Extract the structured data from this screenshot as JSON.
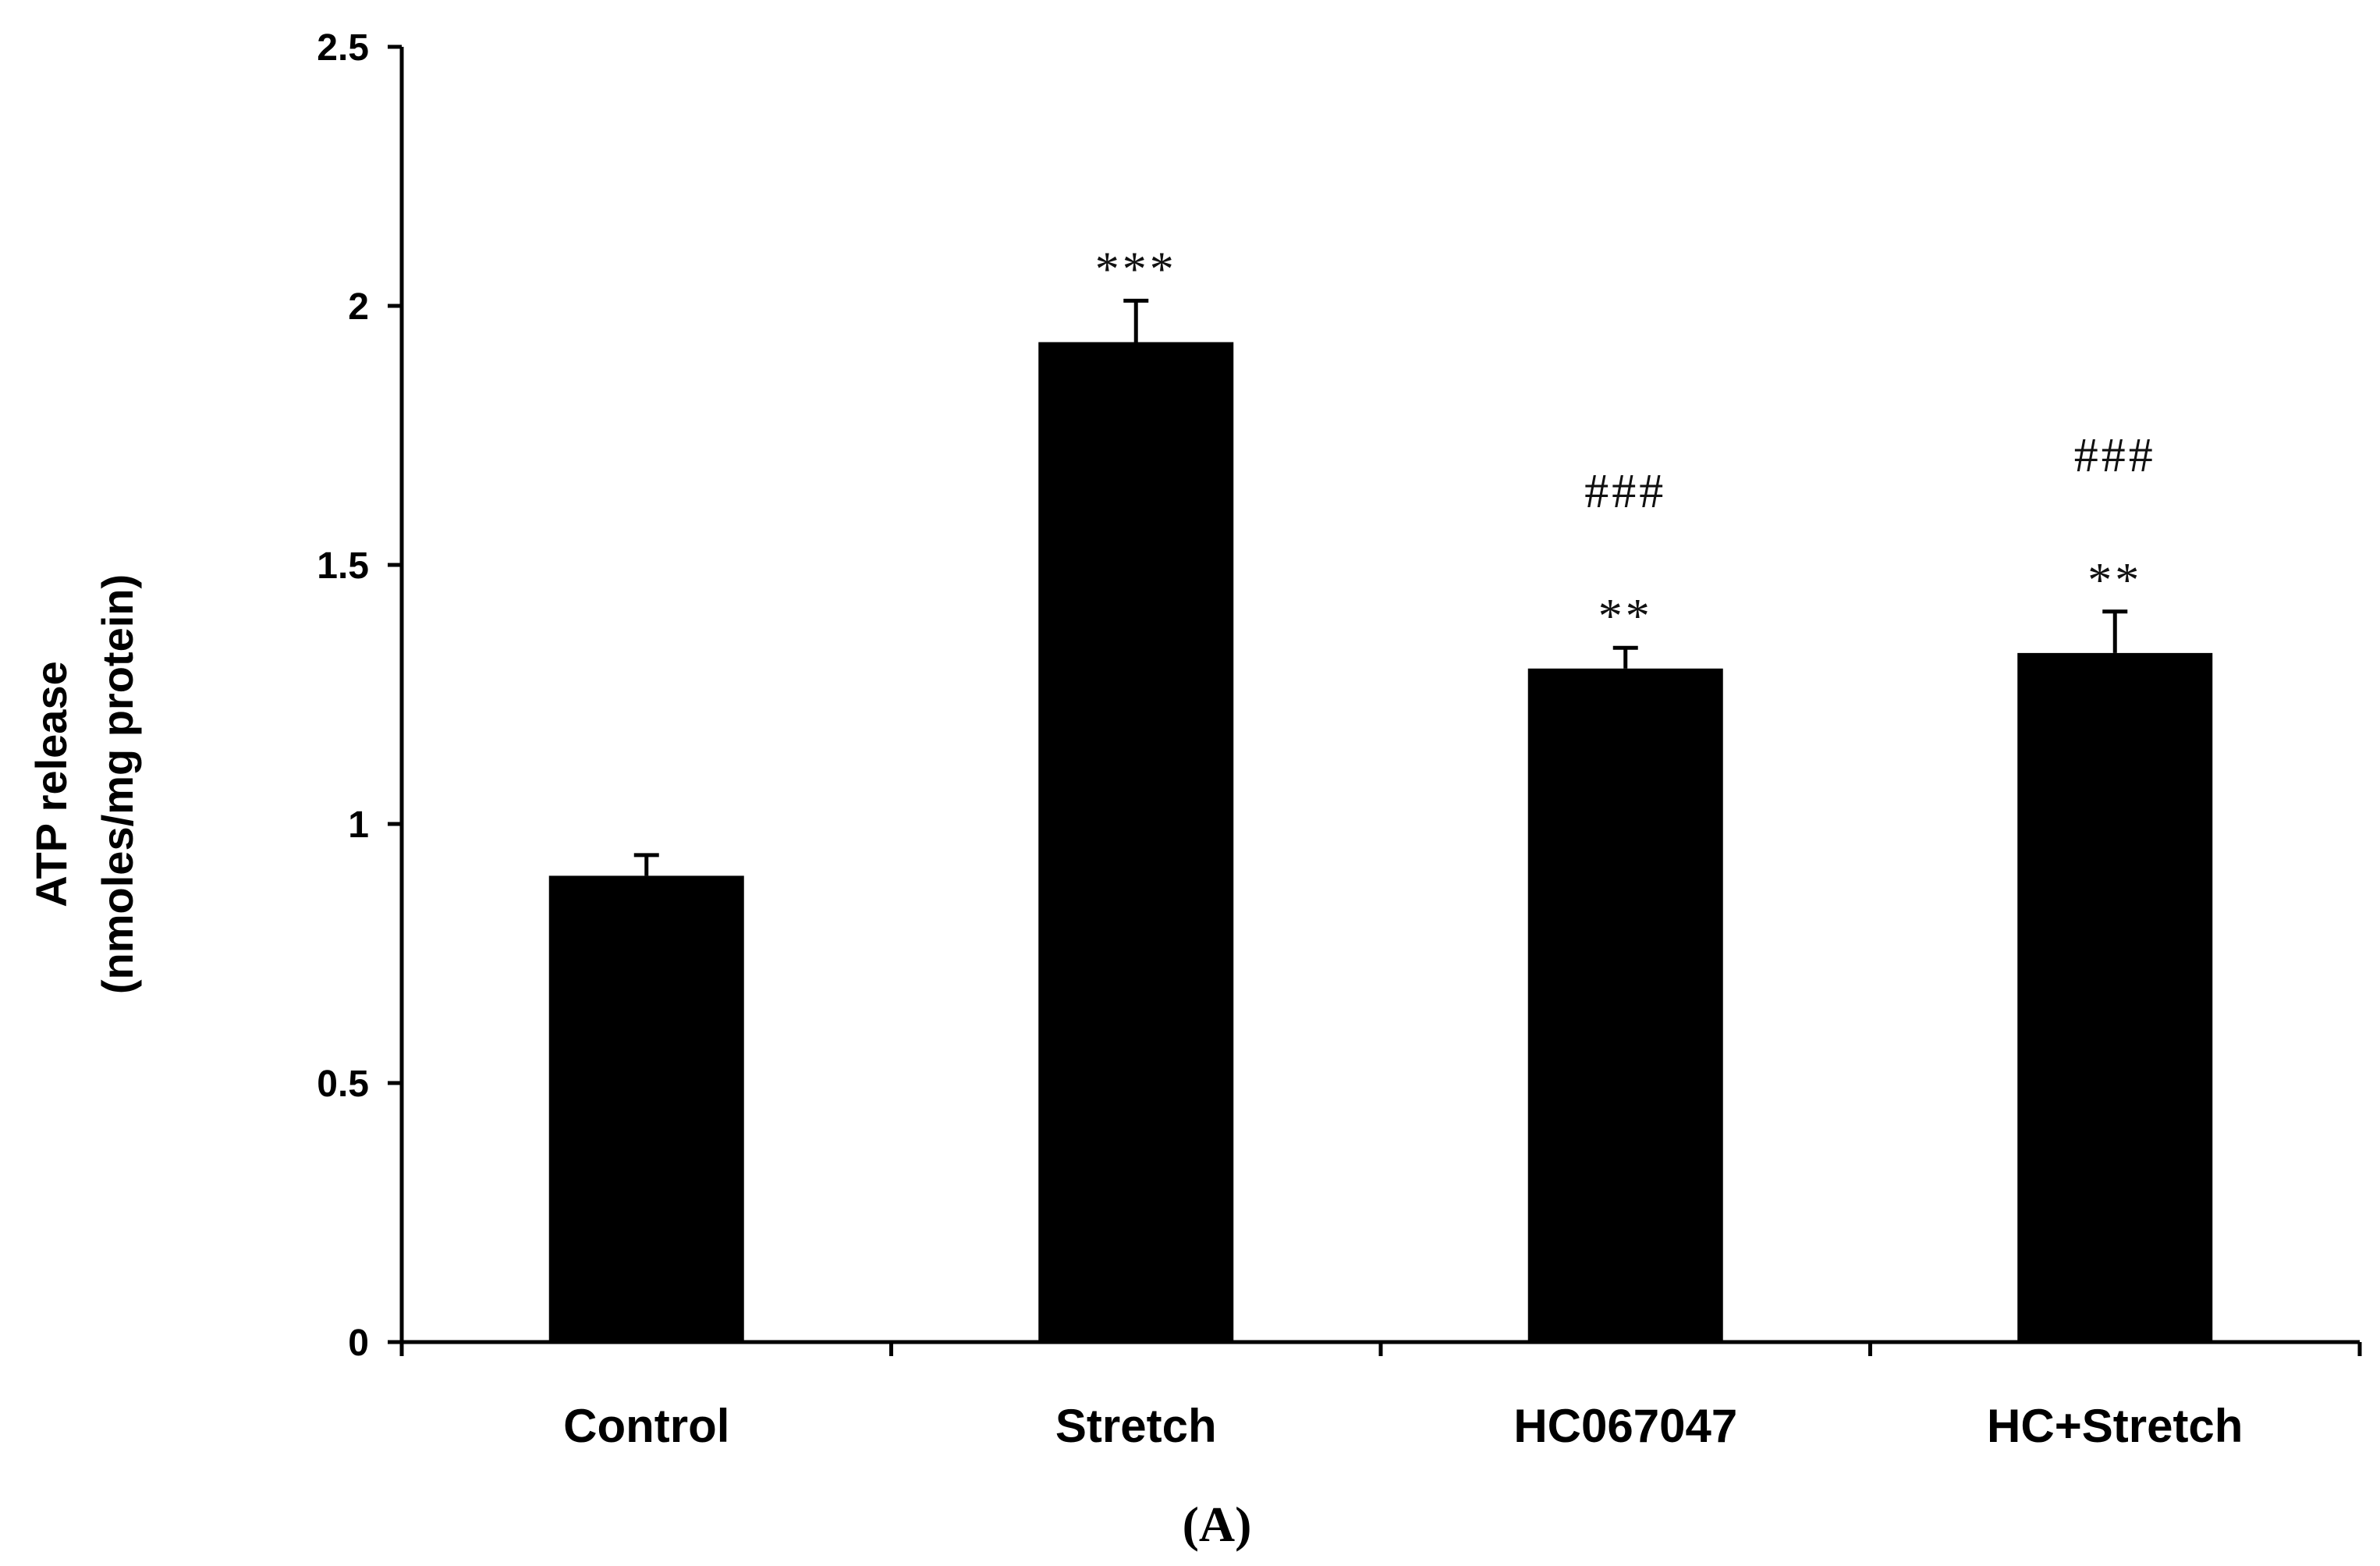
{
  "chart_data": {
    "type": "bar",
    "categories": [
      "Control",
      "Stretch",
      "HC067047",
      "HC+Stretch"
    ],
    "series": [
      {
        "values": [
          0.9,
          1.93,
          1.3,
          1.33
        ],
        "errors": [
          0.04,
          0.08,
          0.04,
          0.08
        ],
        "color": "#000000"
      }
    ],
    "annotations": [
      {
        "category_index": 1,
        "lines": [
          "***"
        ]
      },
      {
        "category_index": 2,
        "lines": [
          "###",
          "**"
        ]
      },
      {
        "category_index": 3,
        "lines": [
          "###",
          "**"
        ]
      }
    ],
    "ylabel_line1": "ATP release",
    "ylabel_line2": "(nmoles/mg protein)",
    "ylim": [
      0,
      2.5
    ],
    "yticks": [
      "0",
      "0.5",
      "1",
      "1.5",
      "2",
      "2.5"
    ],
    "grid": false,
    "legend": "none",
    "panel_label": "(A)"
  }
}
